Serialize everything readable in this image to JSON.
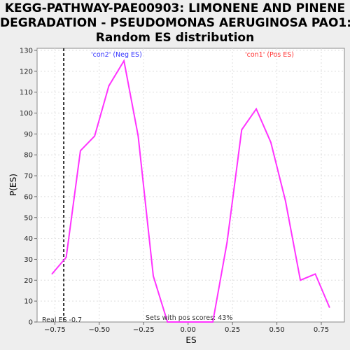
{
  "chart_data": {
    "type": "line",
    "title_lines": [
      "KEGG-PATHWAY-PAE00903: LIMONENE AND PINENE",
      "DEGRADATION - PSEUDOMONAS AERUGINOSA PAO1:",
      "Random ES distribution"
    ],
    "xlabel": "ES",
    "ylabel": "P(ES)",
    "xlim": [
      -0.85,
      0.88
    ],
    "ylim": [
      0,
      131
    ],
    "xticks": [
      -0.75,
      -0.5,
      -0.25,
      0.0,
      0.25,
      0.5,
      0.75
    ],
    "xtick_labels": [
      "−0.75",
      "−0.50",
      "−0.25",
      "0.00",
      "0.25",
      "0.50",
      "0.75"
    ],
    "yticks": [
      0,
      10,
      20,
      30,
      40,
      50,
      60,
      70,
      80,
      90,
      100,
      110,
      120,
      130
    ],
    "grid": true,
    "series": [
      {
        "color": "#ff33ff",
        "points": [
          [
            -0.766,
            23
          ],
          [
            -0.686,
            31
          ],
          [
            -0.606,
            82
          ],
          [
            -0.526,
            89
          ],
          [
            -0.446,
            113
          ],
          [
            -0.361,
            125
          ],
          [
            -0.281,
            89
          ],
          [
            -0.196,
            22
          ],
          [
            -0.116,
            0
          ],
          [
            0.139,
            0
          ],
          [
            0.219,
            38
          ],
          [
            0.302,
            92
          ],
          [
            0.384,
            102
          ],
          [
            0.466,
            86
          ],
          [
            0.548,
            58
          ],
          [
            0.632,
            20
          ],
          [
            0.716,
            23
          ],
          [
            0.796,
            7
          ]
        ]
      }
    ],
    "real_es": -0.7,
    "annotations": {
      "neg_label": "'con2' (Neg ES)",
      "pos_label": "'con1' (Pos ES)",
      "neg_color": "#3333ff",
      "pos_color": "#ff3333",
      "real_es_label": "Real ES -0.7",
      "pos_scores_label": "Sets with pos scores: 43%"
    }
  }
}
